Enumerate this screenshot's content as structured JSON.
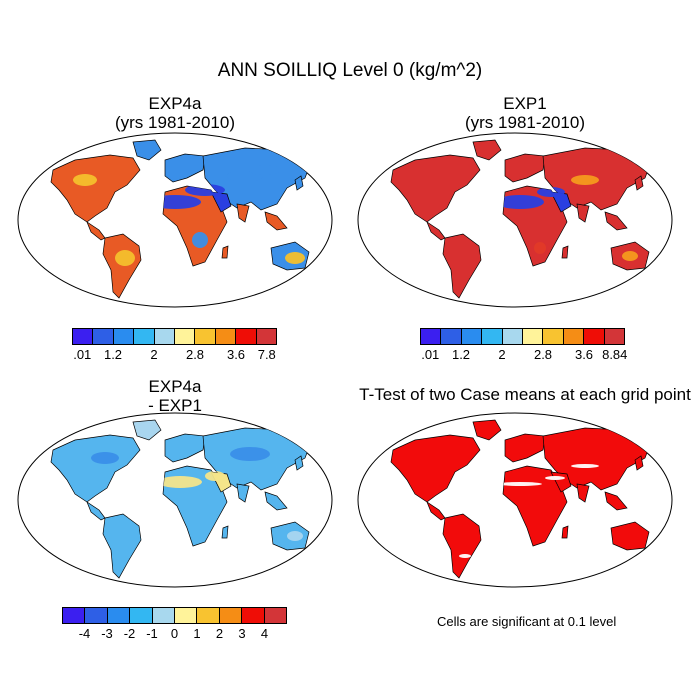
{
  "figure": {
    "title": "ANN SOILLIQ Level 0 (kg/m^2)"
  },
  "panels": [
    {
      "id": "exp4a",
      "title_line1": "EXP4a",
      "title_line2": "(yrs 1981-2010)"
    },
    {
      "id": "exp1",
      "title_line1": "EXP1",
      "title_line2": "(yrs 1981-2010)"
    },
    {
      "id": "diff",
      "title_line1": "EXP4a",
      "title_line2": "- EXP1"
    },
    {
      "id": "ttest",
      "title_line1": "T-Test of two Case means at each grid point",
      "title_line2": ""
    }
  ],
  "colorbars": {
    "exp4a": {
      "labels": [
        ".01",
        "1.2",
        "2",
        "2.8",
        "3.6",
        "7.8"
      ],
      "colors": [
        "#3b1ff0",
        "#2e5fe6",
        "#2a8cef",
        "#33b7f2",
        "#a8d8ee",
        "#fff39a",
        "#f8c330",
        "#f58d15",
        "#ef0d06",
        "#d33538"
      ]
    },
    "exp1": {
      "labels": [
        ".01",
        "1.2",
        "2",
        "2.8",
        "3.6",
        "8.84"
      ],
      "colors": [
        "#3b1ff0",
        "#2e5fe6",
        "#2a8cef",
        "#33b7f2",
        "#a8d8ee",
        "#fff39a",
        "#f8c330",
        "#f58d15",
        "#ef0d06",
        "#d33538"
      ]
    },
    "diff": {
      "labels": [
        "-4",
        "-3",
        "-2",
        "-1",
        "0",
        "1",
        "2",
        "3",
        "4"
      ],
      "colors": [
        "#3b1ff0",
        "#2e5fe6",
        "#2a8cef",
        "#33b7f2",
        "#a8d8ee",
        "#fff39a",
        "#f8c330",
        "#f58d15",
        "#ef0d06",
        "#d33538"
      ]
    }
  },
  "note": {
    "text": "Cells are significant at 0.1 level"
  },
  "map_palettes": {
    "exp4a": {
      "land": "#e85a25",
      "wet": "#3a8fe8",
      "dry": "#2a3fe0",
      "mid": "#f4c02c"
    },
    "exp1": {
      "land": "#d83030",
      "wet": "#e23a28",
      "dry": "#2a3fe0",
      "mid": "#f59a1e"
    },
    "diff": {
      "land": "#55b5ee",
      "wet": "#3a8fe8",
      "dry": "#f4e58a",
      "mid": "#a9d6ef"
    },
    "ttest": {
      "land": "#f20b0b",
      "wet": "#f20b0b",
      "dry": "#ffffff",
      "mid": "#f20b0b"
    }
  }
}
